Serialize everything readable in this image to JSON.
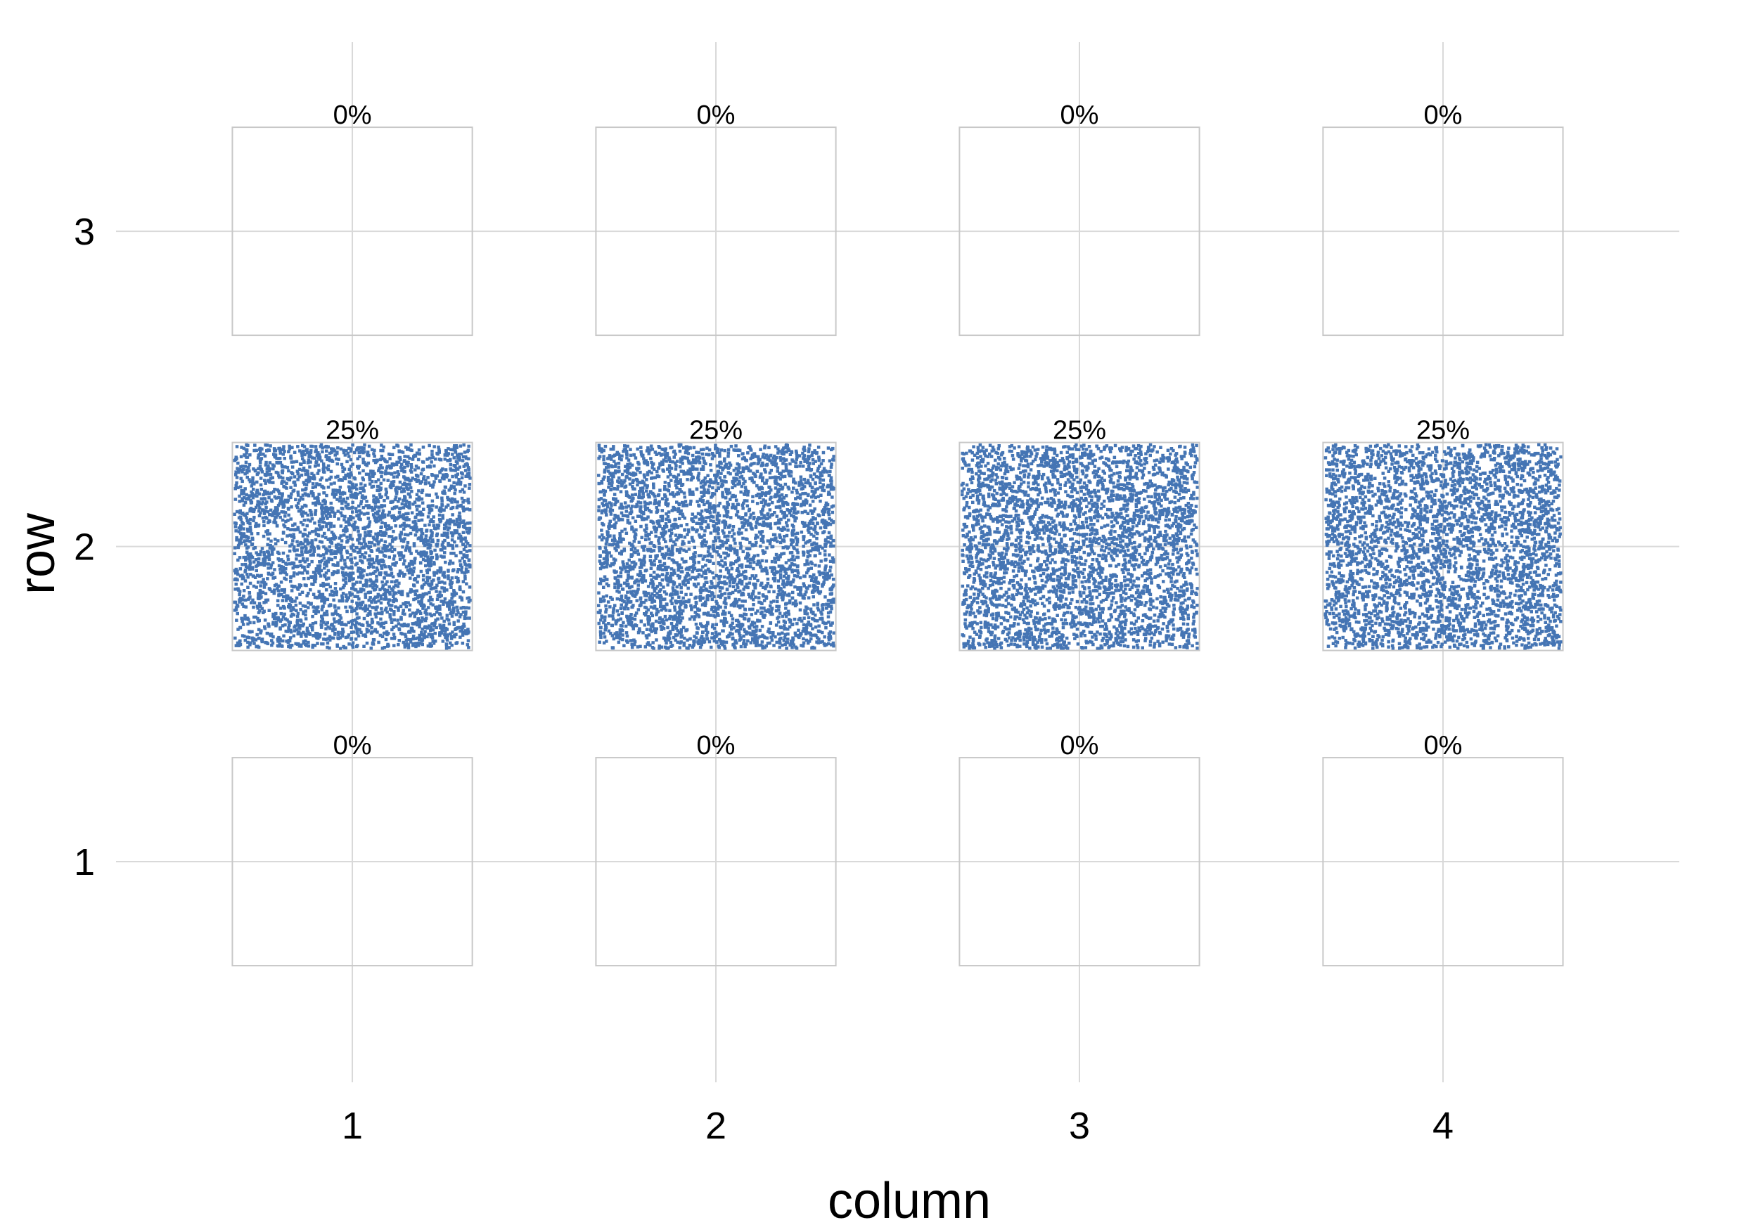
{
  "chart_data": {
    "type": "heatmap",
    "title": "",
    "xlabel": "column",
    "ylabel": "row",
    "x_ticks": [
      "1",
      "2",
      "3",
      "4"
    ],
    "y_ticks": [
      "1",
      "2",
      "3"
    ],
    "xlim": [
      0.35,
      4.65
    ],
    "ylim": [
      0.3,
      3.6
    ],
    "grid": true,
    "legend": "none",
    "point_color": "#4575b4",
    "cells": [
      {
        "row": 3,
        "column": 1,
        "value": 0,
        "label": "0%"
      },
      {
        "row": 3,
        "column": 2,
        "value": 0,
        "label": "0%"
      },
      {
        "row": 3,
        "column": 3,
        "value": 0,
        "label": "0%"
      },
      {
        "row": 3,
        "column": 4,
        "value": 0,
        "label": "0%"
      },
      {
        "row": 2,
        "column": 1,
        "value": 25,
        "label": "25%"
      },
      {
        "row": 2,
        "column": 2,
        "value": 25,
        "label": "25%"
      },
      {
        "row": 2,
        "column": 3,
        "value": 25,
        "label": "25%"
      },
      {
        "row": 2,
        "column": 4,
        "value": 25,
        "label": "25%"
      },
      {
        "row": 1,
        "column": 1,
        "value": 0,
        "label": "0%"
      },
      {
        "row": 1,
        "column": 2,
        "value": 0,
        "label": "0%"
      },
      {
        "row": 1,
        "column": 3,
        "value": 0,
        "label": "0%"
      },
      {
        "row": 1,
        "column": 4,
        "value": 0,
        "label": "0%"
      }
    ]
  }
}
